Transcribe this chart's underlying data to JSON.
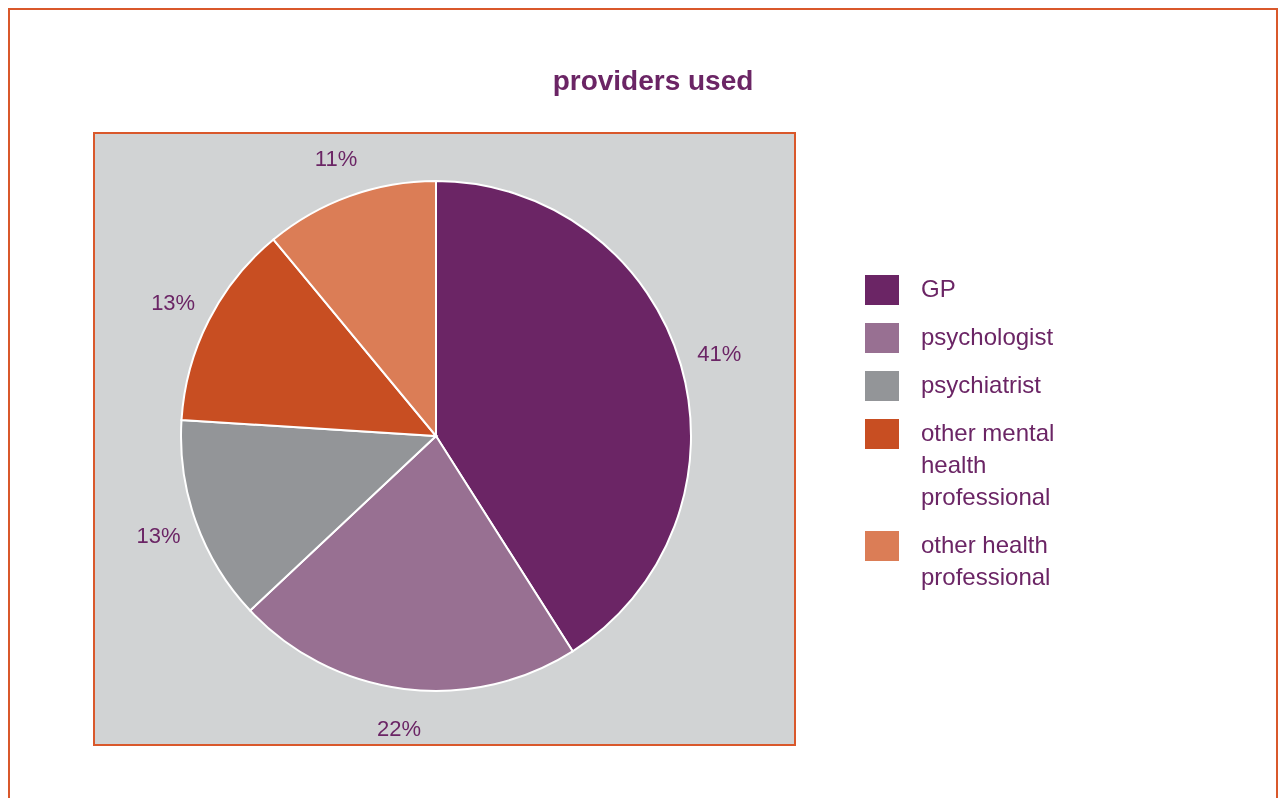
{
  "chart_data": {
    "type": "pie",
    "title": "providers used",
    "categories": [
      "GP",
      "psychologist",
      "psychiatrist",
      "other mental health professional",
      "other health professional"
    ],
    "values": [
      41,
      22,
      13,
      13,
      11
    ],
    "colors": [
      "#6b2565",
      "#987092",
      "#939598",
      "#c84e22",
      "#db7d56"
    ],
    "value_labels": [
      "41%",
      "22%",
      "13%",
      "13%",
      "11%"
    ],
    "legend": "right"
  }
}
